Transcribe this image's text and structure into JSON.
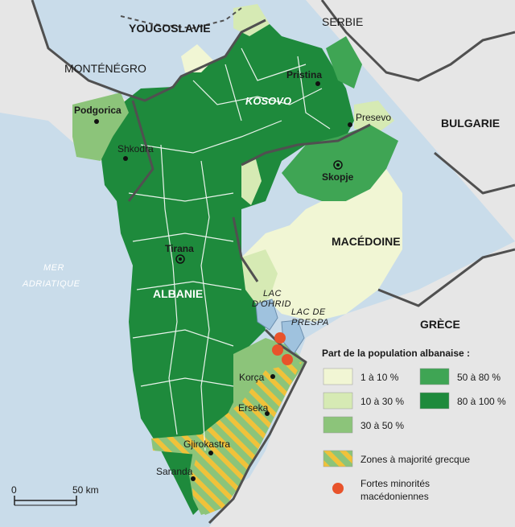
{
  "countries": {
    "yougoslavie": "YOUGOSLAVIE",
    "serbie": "SERBIE",
    "montenegro": "MONTÉNÉGRO",
    "bulgarie": "BULGARIE",
    "kosovo": "KOSOVO",
    "macedoine": "MACÉDOINE",
    "albanie": "ALBANIE",
    "grece": "GRÈCE"
  },
  "water": {
    "mer_line1": "MER",
    "mer_line2": "ADRIATIQUE",
    "lac_ohrid_line1": "LAC",
    "lac_ohrid_line2": "D'OHRID",
    "lac_prespa_line1": "LAC DE",
    "lac_prespa_line2": "PRESPA"
  },
  "cities": {
    "podgorica": "Podgorica",
    "shkodra": "Shkodra",
    "pristina": "Pristina",
    "presevo": "Presevo",
    "skopje": "Skopje",
    "tirana": "Tirana",
    "korca": "Korça",
    "erseka": "Erseka",
    "gjirokastra": "Gjirokastra",
    "saranda": "Saranda"
  },
  "legend": {
    "title": "Part de la population albanaise :",
    "classes": [
      {
        "label": "1 à 10 %",
        "color": "#f1f6d4"
      },
      {
        "label": "10 à 30 %",
        "color": "#d6eab4"
      },
      {
        "label": "30 à 50 %",
        "color": "#8cc47a"
      },
      {
        "label": "50 à 80 %",
        "color": "#3fa554"
      },
      {
        "label": "80 à 100 %",
        "color": "#1e8a3c"
      }
    ],
    "greek_zones": "Zones à majorité grecque",
    "macedonian_line1": "Fortes minorités",
    "macedonian_line2": "macédoniennes"
  },
  "scale": {
    "start": "0",
    "end": "50 km"
  },
  "colors": {
    "sea": "#c9dcea",
    "land_other": "#e6e6e6",
    "border": "#505050",
    "greek_hatch": "#f0c23a",
    "macedonian_dot": "#e8532b"
  }
}
